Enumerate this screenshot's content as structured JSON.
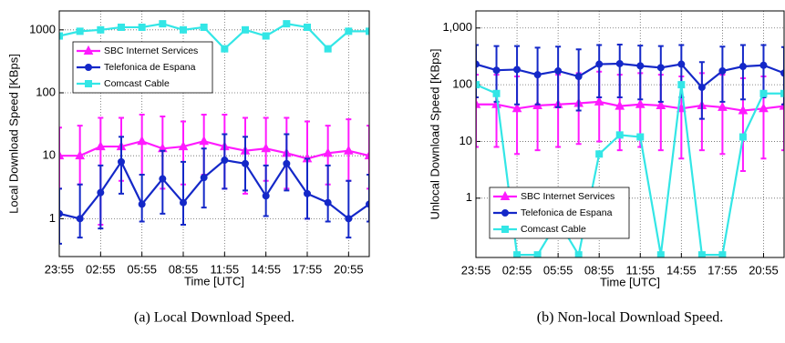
{
  "chart_data": [
    {
      "type": "line",
      "caption": "(a) Local Download Speed.",
      "ylabel": "Local Download Speed [KBps]",
      "xlabel": "Time [UTC]",
      "log_y": true,
      "grid": true,
      "legend": "upper left",
      "xlim": [
        0,
        22.5
      ],
      "xticks": [
        {
          "value": 0,
          "label": "23:55"
        },
        {
          "value": 3,
          "label": "02:55"
        },
        {
          "value": 6,
          "label": "05:55"
        },
        {
          "value": 9,
          "label": "08:55"
        },
        {
          "value": 12,
          "label": "11:55"
        },
        {
          "value": 15,
          "label": "14:55"
        },
        {
          "value": 18,
          "label": "17:55"
        },
        {
          "value": 21,
          "label": "20:55"
        }
      ],
      "ylim": [
        0.25,
        2000
      ],
      "yticks": [
        1,
        10,
        100,
        1000
      ],
      "x": [
        0,
        1.5,
        3,
        4.5,
        6,
        7.5,
        9,
        10.5,
        12,
        13.5,
        15,
        16.5,
        18,
        19.5,
        21,
        22.5
      ],
      "series": [
        {
          "name": "SBC Internet Services",
          "color": "#ff1aff",
          "marker": "triangle",
          "values": [
            10,
            10,
            14,
            14,
            17,
            13,
            14,
            17,
            14,
            12,
            13,
            11,
            9,
            11,
            12,
            10
          ],
          "lower": [
            3,
            3.5,
            0.8,
            4,
            5,
            3,
            3.5,
            5,
            3,
            2.5,
            4,
            3,
            1,
            3.5,
            4,
            3
          ],
          "upper": [
            28,
            30,
            40,
            40,
            45,
            42,
            35,
            45,
            45,
            40,
            40,
            40,
            35,
            30,
            38,
            30
          ]
        },
        {
          "name": "Telefonica de Espana",
          "color": "#1428c8",
          "marker": "circle",
          "values": [
            1.2,
            1.0,
            2.6,
            8,
            1.7,
            4.3,
            1.8,
            4.5,
            8.5,
            7.5,
            2.3,
            7.5,
            2.5,
            1.8,
            1.0,
            1.7
          ],
          "lower": [
            0.4,
            0.5,
            0.7,
            2.5,
            0.9,
            1.2,
            0.8,
            1.5,
            3,
            2.8,
            1.1,
            2.8,
            1,
            0.9,
            0.5,
            0.9
          ],
          "upper": [
            3,
            3.5,
            7,
            20,
            5,
            12,
            8,
            13,
            22,
            20,
            7,
            22,
            9,
            7,
            4,
            5
          ]
        },
        {
          "name": "Comcast Cable",
          "color": "#33e6e6",
          "marker": "square",
          "values": [
            800,
            950,
            1000,
            1100,
            1100,
            1250,
            1000,
            1100,
            500,
            1000,
            800,
            1250,
            1100,
            500,
            950,
            950
          ]
        }
      ]
    },
    {
      "type": "line",
      "caption": "(b) Non-local Download Speed.",
      "ylabel": "Unlocal Download Speed [KBps]",
      "xlabel": "Time [UTC]",
      "log_y": true,
      "grid": true,
      "legend": "lower left",
      "xlim": [
        0,
        22.5
      ],
      "xticks": [
        {
          "value": 0,
          "label": "23:55"
        },
        {
          "value": 3,
          "label": "02:55"
        },
        {
          "value": 6,
          "label": "05:55"
        },
        {
          "value": 9,
          "label": "08:55"
        },
        {
          "value": 12,
          "label": "11:55"
        },
        {
          "value": 15,
          "label": "14:55"
        },
        {
          "value": 18,
          "label": "17:55"
        },
        {
          "value": 21,
          "label": "20:55"
        }
      ],
      "ylim": [
        0.09,
        2000
      ],
      "yticks": [
        1,
        10,
        100,
        {
          "value": 1000,
          "label": "1,000"
        }
      ],
      "x": [
        0,
        1.5,
        3,
        4.5,
        6,
        7.5,
        9,
        10.5,
        12,
        13.5,
        15,
        16.5,
        18,
        19.5,
        21,
        22.5
      ],
      "series": [
        {
          "name": "SBC Internet Services",
          "color": "#ff1aff",
          "marker": "triangle",
          "values": [
            45,
            45,
            38,
            43,
            45,
            47,
            50,
            42,
            45,
            43,
            38,
            43,
            40,
            35,
            38,
            42
          ],
          "lower": [
            8,
            8,
            6,
            7,
            8,
            9,
            10,
            7,
            8,
            7,
            5,
            7,
            6,
            3,
            5,
            7
          ],
          "upper": [
            150,
            150,
            140,
            150,
            150,
            160,
            170,
            150,
            160,
            150,
            140,
            160,
            150,
            130,
            140,
            150
          ]
        },
        {
          "name": "Telefonica de Espana",
          "color": "#1428c8",
          "marker": "circle",
          "values": [
            230,
            180,
            185,
            150,
            175,
            140,
            230,
            235,
            215,
            200,
            230,
            90,
            175,
            210,
            220,
            160
          ],
          "lower": [
            60,
            50,
            45,
            45,
            40,
            35,
            60,
            60,
            55,
            50,
            60,
            25,
            50,
            55,
            60,
            45
          ],
          "upper": [
            500,
            480,
            480,
            450,
            470,
            420,
            500,
            510,
            490,
            480,
            500,
            250,
            470,
            500,
            500,
            460
          ]
        },
        {
          "name": "Comcast Cable",
          "color": "#33e6e6",
          "marker": "square",
          "values": [
            100,
            70,
            0.1,
            0.1,
            0.4,
            0.1,
            6,
            13,
            12,
            0.1,
            100,
            0.1,
            0.1,
            12,
            70,
            70
          ]
        }
      ]
    }
  ]
}
